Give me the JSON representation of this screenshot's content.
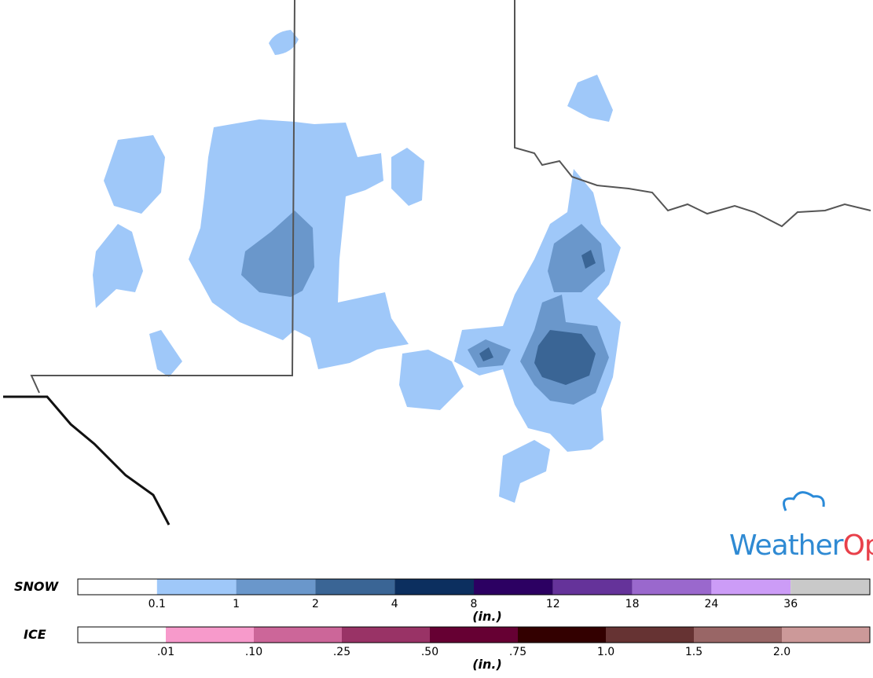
{
  "logo": {
    "first": "Weather",
    "second": "Ops"
  },
  "legend": [
    {
      "label": "SNOW",
      "unit": "(in.)",
      "colors": [
        "#ffffff",
        "#9fc8f9",
        "#6a97cb",
        "#3a6595",
        "#0c2f5f",
        "#2c0062",
        "#65339a",
        "#9a68cd",
        "#cc9cf7",
        "#c9c9c9"
      ],
      "ticks": [
        "0.1",
        "1",
        "2",
        "4",
        "8",
        "12",
        "18",
        "24",
        "36"
      ]
    },
    {
      "label": "ICE",
      "unit": "(in.)",
      "colors": [
        "#ffffff",
        "#f79acb",
        "#cc6699",
        "#993366",
        "#660033",
        "#330000",
        "#663333",
        "#996666",
        "#cc9999"
      ],
      "ticks": [
        ".01",
        ".10",
        ".25",
        ".50",
        ".75",
        "1.0",
        "1.5",
        "2.0"
      ]
    }
  ]
}
